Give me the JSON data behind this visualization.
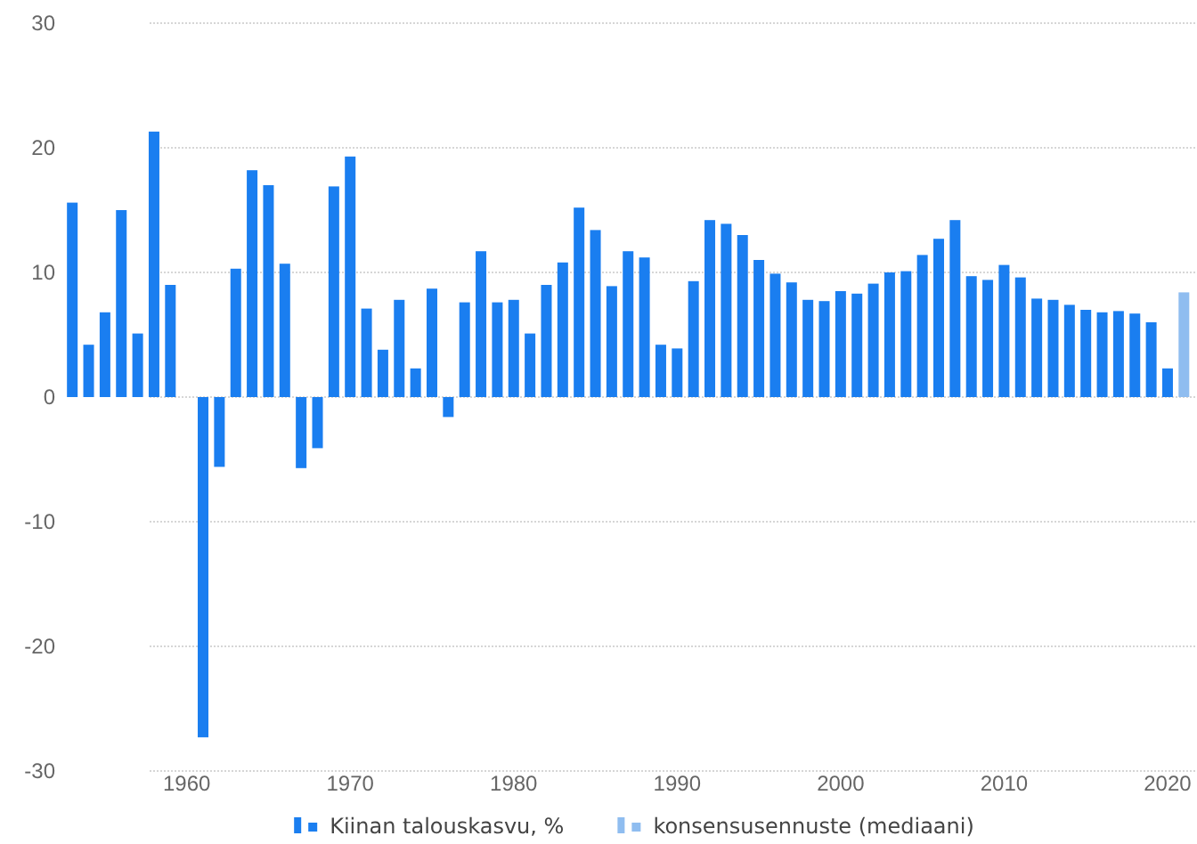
{
  "chart_data": {
    "type": "bar",
    "xlim": [
      1952.5,
      2021.8
    ],
    "xticks": [
      1960,
      1970,
      1980,
      1990,
      2000,
      2010,
      2020
    ],
    "ylim": [
      -30,
      30
    ],
    "yticks": [
      -30,
      -20,
      -10,
      0,
      10,
      20,
      30
    ],
    "grid": "y",
    "legend": "bottom",
    "series": [
      {
        "name": "Kiinan talouskasvu, %",
        "color": "#1a7ef0",
        "x": [
          1953,
          1954,
          1955,
          1956,
          1957,
          1958,
          1959,
          1960,
          1961,
          1962,
          1963,
          1964,
          1965,
          1966,
          1967,
          1968,
          1969,
          1970,
          1971,
          1972,
          1973,
          1974,
          1975,
          1976,
          1977,
          1978,
          1979,
          1980,
          1981,
          1982,
          1983,
          1984,
          1985,
          1986,
          1987,
          1988,
          1989,
          1990,
          1991,
          1992,
          1993,
          1994,
          1995,
          1996,
          1997,
          1998,
          1999,
          2000,
          2001,
          2002,
          2003,
          2004,
          2005,
          2006,
          2007,
          2008,
          2009,
          2010,
          2011,
          2012,
          2013,
          2014,
          2015,
          2016,
          2017,
          2018,
          2019,
          2020
        ],
        "values": [
          15.6,
          4.2,
          6.8,
          15.0,
          5.1,
          21.3,
          9.0,
          0.0,
          -27.3,
          -5.6,
          10.3,
          18.2,
          17.0,
          10.7,
          -5.7,
          -4.1,
          16.9,
          19.3,
          7.1,
          3.8,
          7.8,
          2.3,
          8.7,
          -1.6,
          7.6,
          11.7,
          7.6,
          7.8,
          5.1,
          9.0,
          10.8,
          15.2,
          13.4,
          8.9,
          11.7,
          11.2,
          4.2,
          3.9,
          9.3,
          14.2,
          13.9,
          13.0,
          11.0,
          9.9,
          9.2,
          7.8,
          7.7,
          8.5,
          8.3,
          9.1,
          10.0,
          10.1,
          11.4,
          12.7,
          14.2,
          9.7,
          9.4,
          10.6,
          9.6,
          7.9,
          7.8,
          7.4,
          7.0,
          6.8,
          6.9,
          6.7,
          6.0,
          2.3
        ]
      },
      {
        "name": "konsensusennuste (mediaani)",
        "color": "#8fbdf0",
        "x": [
          2021
        ],
        "values": [
          8.4
        ]
      }
    ]
  }
}
